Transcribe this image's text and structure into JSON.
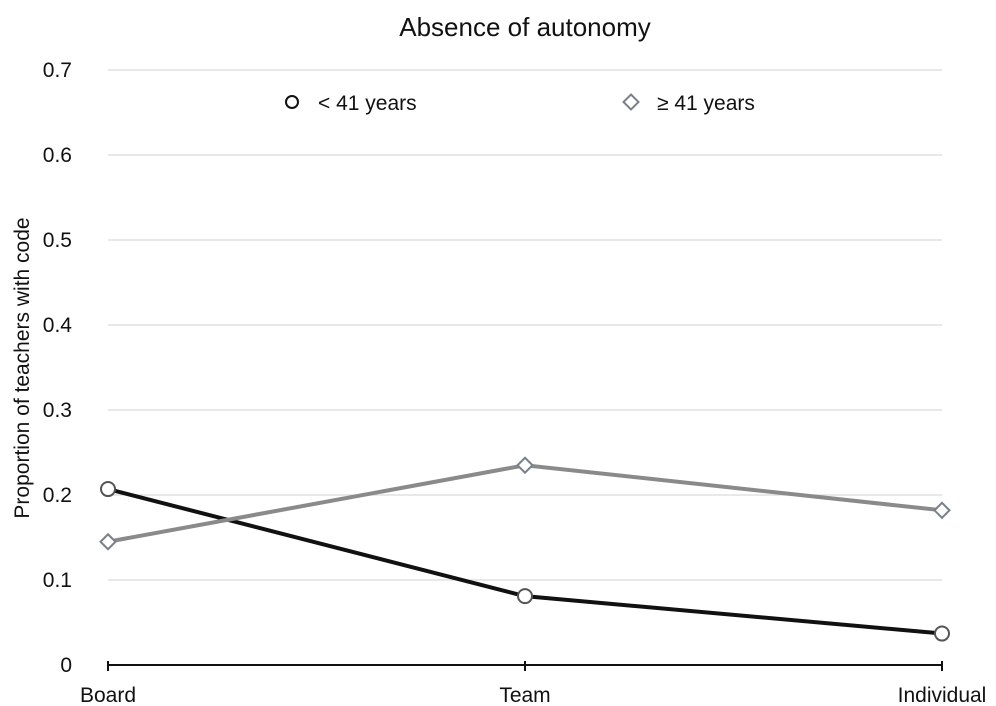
{
  "chart_data": {
    "type": "line",
    "title": "Absence of autonomy",
    "xlabel": "",
    "ylabel": "Proportion of teachers with code",
    "categories": [
      "Board",
      "Team",
      "Individual"
    ],
    "ylim": [
      0,
      0.7
    ],
    "yticks": [
      0,
      0.1,
      0.2,
      0.3,
      0.4,
      0.5,
      0.6,
      0.7
    ],
    "ytick_labels": [
      "0",
      "0.1",
      "0.2",
      "0.3",
      "0.4",
      "0.5",
      "0.6",
      "0.7"
    ],
    "grid": true,
    "legend_position": "top",
    "series": [
      {
        "name": "< 41 years",
        "values": [
          0.207,
          0.081,
          0.037
        ],
        "color": "#111111",
        "marker": "circle"
      },
      {
        "name": "≥ 41 years",
        "values": [
          0.145,
          0.235,
          0.182
        ],
        "color": "#8a8a8a",
        "marker": "diamond"
      }
    ]
  }
}
